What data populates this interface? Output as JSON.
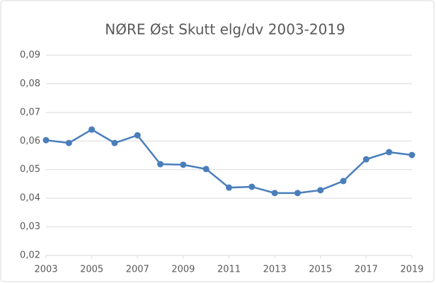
{
  "chart_data": {
    "type": "line",
    "title": "NØRE Øst Skutt elg/dv 2003-2019",
    "x": [
      2003,
      2004,
      2005,
      2006,
      2007,
      2008,
      2009,
      2010,
      2011,
      2012,
      2013,
      2014,
      2015,
      2016,
      2017,
      2018,
      2019
    ],
    "series": [
      {
        "color": "#4a7ebb",
        "values": [
          0.0603,
          0.0593,
          0.064,
          0.0593,
          0.062,
          0.0519,
          0.0517,
          0.0502,
          0.0437,
          0.044,
          0.0418,
          0.0418,
          0.0428,
          0.046,
          0.0536,
          0.0561,
          0.0551
        ]
      }
    ],
    "xlim": [
      2003,
      2019
    ],
    "xticks": [
      2003,
      2005,
      2007,
      2009,
      2011,
      2013,
      2015,
      2017,
      2019
    ],
    "ylim": [
      0.02,
      0.09
    ],
    "yticks": [
      {
        "value": 0.02,
        "label": "0,02"
      },
      {
        "value": 0.03,
        "label": "0,03"
      },
      {
        "value": 0.04,
        "label": "0,04"
      },
      {
        "value": 0.05,
        "label": "0,05"
      },
      {
        "value": 0.06,
        "label": "0,06"
      },
      {
        "value": 0.07,
        "label": "0,07"
      },
      {
        "value": 0.08,
        "label": "0,08"
      },
      {
        "value": 0.09,
        "label": "0,09"
      }
    ],
    "grid": true
  }
}
